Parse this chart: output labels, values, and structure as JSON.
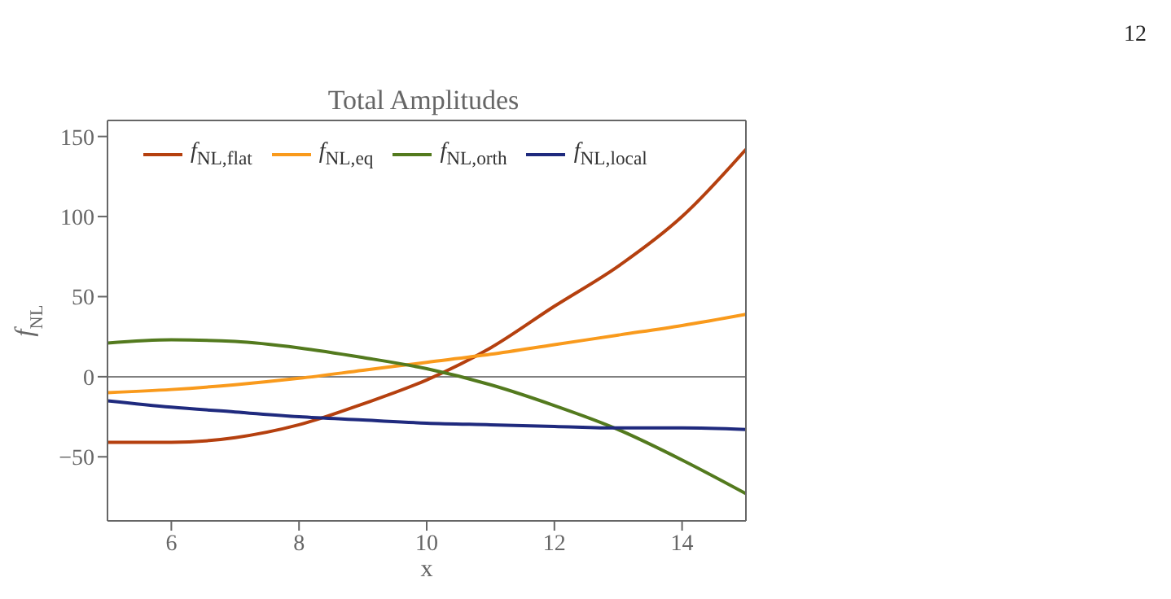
{
  "chart_data": {
    "type": "line",
    "title": "Total Amplitudes",
    "xlabel": "x",
    "ylabel": "f$_{NL}$",
    "annotations": [
      "12"
    ],
    "x": [
      5,
      6,
      7,
      8,
      9,
      10,
      11,
      12,
      13,
      14,
      15
    ],
    "series": [
      {
        "name": "f$_{NL,flat}$",
        "color": "#b5400f",
        "values": [
          -41,
          -41,
          -38,
          -30,
          -17,
          -2,
          18,
          44,
          69,
          100,
          142
        ]
      },
      {
        "name": "f$_{NL,eq}$",
        "color": "#f99a1c",
        "values": [
          -10,
          -8,
          -5,
          -1,
          4,
          9,
          14,
          20,
          26,
          32,
          39
        ]
      },
      {
        "name": "f$_{NL,orth}$",
        "color": "#537a1e",
        "values": [
          21,
          23,
          22,
          18,
          12,
          5,
          -5,
          -18,
          -33,
          -52,
          -73
        ]
      },
      {
        "name": "f$_{NL,local}$",
        "color": "#1f2a7e",
        "values": [
          -15,
          -19,
          -22,
          -25,
          -27,
          -29,
          -30,
          -31,
          -32,
          -32,
          -33
        ]
      }
    ],
    "xlim": [
      5,
      15
    ],
    "xticks": [
      6,
      8,
      10,
      12,
      14
    ],
    "ylim": [
      -90,
      160
    ],
    "yticks": [
      {
        "value": -50,
        "label": "−50"
      },
      0,
      50,
      100,
      150
    ],
    "ref_lines": [
      {
        "axis": "y",
        "value": 0,
        "color": "#808080"
      }
    ],
    "legend": "top",
    "grid": false,
    "marker": "none",
    "line_style": "solid"
  }
}
